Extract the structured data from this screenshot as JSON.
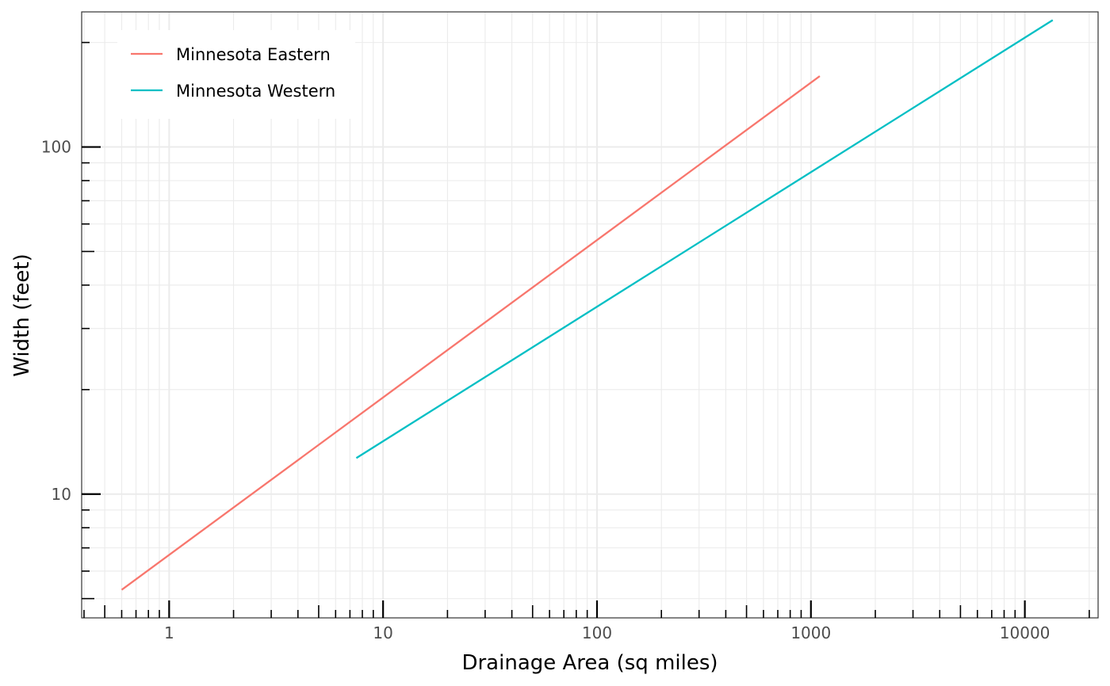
{
  "chart_data": {
    "type": "line",
    "xlabel": "Drainage Area (sq miles)",
    "ylabel": "Width (feet)",
    "x_scale": "log",
    "y_scale": "log",
    "xlim": [
      0.39,
      22000
    ],
    "ylim": [
      4.4,
      245
    ],
    "x_ticks": [
      1,
      10,
      100,
      1000,
      10000
    ],
    "x_tick_labels": [
      "1",
      "10",
      "100",
      "1000",
      "10000"
    ],
    "y_ticks": [
      10,
      100
    ],
    "y_tick_labels": [
      "10",
      "100"
    ],
    "grid": true,
    "legend_position": "top-left",
    "series": [
      {
        "name": "Minnesota Eastern",
        "color": "#F8766D",
        "x": [
          0.6,
          1100
        ],
        "y": [
          5.3,
          160
        ]
      },
      {
        "name": "Minnesota Western",
        "color": "#00BFC4",
        "x": [
          7.5,
          13500
        ],
        "y": [
          12.7,
          232
        ]
      }
    ]
  }
}
